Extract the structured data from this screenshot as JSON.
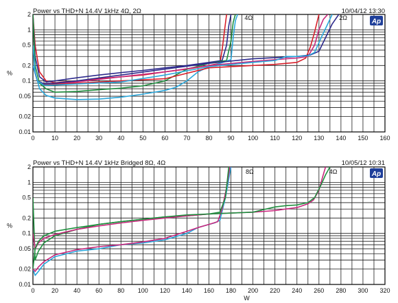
{
  "chart_data": [
    {
      "type": "line",
      "title": "Power vs THD+N 14.4V 1kHz 4Ω, 2Ω",
      "date": "10/04/12 13:30",
      "logo": "Ap",
      "xlabel": "",
      "ylabel": "%",
      "xlim": [
        0,
        160
      ],
      "ylim": [
        0.01,
        2
      ],
      "y_scale": "log",
      "grid": true,
      "x_ticks": [
        0,
        10,
        20,
        30,
        40,
        50,
        60,
        70,
        80,
        90,
        100,
        110,
        120,
        130,
        140,
        150,
        160
      ],
      "y_ticks": [
        {
          "v": 2,
          "label": "2"
        },
        {
          "v": 1,
          "label": "1"
        },
        {
          "v": 0.5,
          "label": "0.5"
        },
        {
          "v": 0.2,
          "label": "0.2"
        },
        {
          "v": 0.1,
          "label": "0.1"
        },
        {
          "v": 0.05,
          "label": "0.05"
        },
        {
          "v": 0.02,
          "label": "0.02"
        },
        {
          "v": 0.01,
          "label": "0.01"
        }
      ],
      "annotations": [
        {
          "text": "4Ω",
          "x": 98,
          "y": 1.7
        },
        {
          "text": "2Ω",
          "x": 141,
          "y": 1.7
        }
      ],
      "series": [
        {
          "color": "#d81f2a",
          "x": [
            0,
            1,
            3,
            6,
            10,
            20,
            30,
            40,
            50,
            60,
            70,
            80,
            85,
            86,
            87,
            88
          ],
          "y": [
            2,
            0.5,
            0.15,
            0.1,
            0.092,
            0.1,
            0.11,
            0.12,
            0.13,
            0.15,
            0.17,
            0.2,
            0.22,
            0.4,
            0.9,
            2
          ]
        },
        {
          "color": "#2d2a8c",
          "x": [
            0,
            1,
            3,
            6,
            10,
            20,
            30,
            40,
            50,
            60,
            70,
            80,
            86,
            88,
            89,
            90
          ],
          "y": [
            2,
            0.3,
            0.12,
            0.095,
            0.1,
            0.115,
            0.13,
            0.145,
            0.16,
            0.18,
            0.2,
            0.23,
            0.25,
            0.5,
            1.2,
            2
          ]
        },
        {
          "color": "#1f8f3f",
          "x": [
            0,
            1,
            3,
            6,
            10,
            20,
            30,
            40,
            50,
            60,
            70,
            80,
            88,
            90,
            91,
            92
          ],
          "y": [
            2,
            0.2,
            0.09,
            0.07,
            0.06,
            0.062,
            0.067,
            0.072,
            0.08,
            0.1,
            0.17,
            0.22,
            0.25,
            0.6,
            1.4,
            2
          ]
        },
        {
          "color": "#2aa7dc",
          "x": [
            0,
            1,
            3,
            6,
            10,
            20,
            30,
            40,
            50,
            60,
            65,
            70,
            75,
            80,
            85,
            90,
            91,
            92,
            93
          ],
          "y": [
            0.5,
            0.15,
            0.07,
            0.052,
            0.046,
            0.043,
            0.044,
            0.048,
            0.055,
            0.065,
            0.075,
            0.1,
            0.15,
            0.19,
            0.22,
            0.26,
            0.7,
            1.5,
            2
          ]
        },
        {
          "color": "#c8287d",
          "x": [
            0,
            2,
            5,
            10,
            20,
            40,
            60,
            80,
            100,
            110,
            115,
            120,
            125,
            128,
            130,
            132,
            134
          ],
          "y": [
            0.2,
            0.1,
            0.085,
            0.087,
            0.095,
            0.12,
            0.15,
            0.2,
            0.24,
            0.26,
            0.27,
            0.28,
            0.3,
            0.5,
            1,
            1.6,
            2
          ]
        },
        {
          "color": "#d81f2a",
          "x": [
            0,
            2,
            5,
            10,
            20,
            40,
            60,
            80,
            100,
            110,
            120,
            124,
            126,
            128,
            130
          ],
          "y": [
            0.2,
            0.1,
            0.085,
            0.086,
            0.09,
            0.1,
            0.11,
            0.18,
            0.2,
            0.21,
            0.23,
            0.28,
            0.45,
            0.9,
            2
          ]
        },
        {
          "color": "#2d2a8c",
          "x": [
            0,
            2,
            5,
            10,
            20,
            40,
            60,
            80,
            100,
            120,
            126,
            130,
            133,
            136,
            139
          ],
          "y": [
            0.2,
            0.1,
            0.088,
            0.09,
            0.1,
            0.13,
            0.17,
            0.22,
            0.27,
            0.3,
            0.32,
            0.38,
            0.7,
            1.3,
            2
          ]
        },
        {
          "color": "#2aa7dc",
          "x": [
            0,
            2,
            5,
            10,
            20,
            40,
            60,
            80,
            100,
            110,
            115,
            120,
            125,
            128,
            131,
            134,
            136
          ],
          "y": [
            0.2,
            0.1,
            0.082,
            0.083,
            0.087,
            0.095,
            0.13,
            0.19,
            0.23,
            0.25,
            0.3,
            0.3,
            0.31,
            0.36,
            0.7,
            1.3,
            2
          ]
        }
      ]
    },
    {
      "type": "line",
      "title": "Power vs THD+N 14.4V 1kHz Bridged 8Ω, 4Ω",
      "date": "10/05/12 10:31",
      "logo": "Ap",
      "xlabel": "W",
      "ylabel": "%",
      "xlim": [
        0,
        320
      ],
      "ylim": [
        0.01,
        2
      ],
      "y_scale": "log",
      "grid": true,
      "x_ticks": [
        0,
        20,
        40,
        60,
        80,
        100,
        120,
        140,
        160,
        180,
        200,
        220,
        240,
        260,
        280,
        300,
        320
      ],
      "y_ticks": [
        {
          "v": 2,
          "label": "2"
        },
        {
          "v": 1,
          "label": "1"
        },
        {
          "v": 0.5,
          "label": "0.5"
        },
        {
          "v": 0.2,
          "label": "0.2"
        },
        {
          "v": 0.1,
          "label": "0.1"
        },
        {
          "v": 0.05,
          "label": "0.05"
        },
        {
          "v": 0.02,
          "label": "0.02"
        },
        {
          "v": 0.01,
          "label": "0.01"
        }
      ],
      "annotations": [
        {
          "text": "8Ω",
          "x": 197,
          "y": 1.6
        },
        {
          "text": "4Ω",
          "x": 273,
          "y": 1.6
        }
      ],
      "series": [
        {
          "color": "#2aa7dc",
          "x": [
            0,
            2,
            5,
            10,
            20,
            40,
            60,
            80,
            100,
            120,
            140,
            150,
            160,
            165,
            170,
            175,
            180
          ],
          "y": [
            0.02,
            0.015,
            0.018,
            0.025,
            0.035,
            0.045,
            0.05,
            0.06,
            0.065,
            0.075,
            0.1,
            0.13,
            0.15,
            0.16,
            0.18,
            0.5,
            2
          ]
        },
        {
          "color": "#c8287d",
          "x": [
            0,
            2,
            5,
            10,
            20,
            40,
            60,
            80,
            100,
            120,
            140,
            150,
            160,
            168,
            172,
            176,
            179
          ],
          "y": [
            0.02,
            0.018,
            0.022,
            0.028,
            0.038,
            0.048,
            0.055,
            0.06,
            0.068,
            0.08,
            0.11,
            0.13,
            0.15,
            0.17,
            0.3,
            0.8,
            2
          ]
        },
        {
          "color": "#1f8f3f",
          "x": [
            0,
            2,
            5,
            10,
            20,
            40,
            60,
            80,
            100,
            120,
            140,
            160,
            170,
            175,
            178
          ],
          "y": [
            0.5,
            0.03,
            0.045,
            0.065,
            0.09,
            0.12,
            0.15,
            0.17,
            0.19,
            0.21,
            0.22,
            0.24,
            0.26,
            0.5,
            2
          ]
        },
        {
          "color": "#c8287d",
          "x": [
            0,
            2,
            5,
            10,
            20,
            40,
            60,
            80,
            100,
            120,
            140,
            160,
            180,
            200,
            220,
            230,
            240,
            250,
            255,
            260,
            263,
            266
          ],
          "y": [
            0.1,
            0.05,
            0.065,
            0.08,
            0.095,
            0.12,
            0.14,
            0.16,
            0.18,
            0.2,
            0.22,
            0.24,
            0.25,
            0.26,
            0.28,
            0.3,
            0.32,
            0.38,
            0.45,
            0.7,
            1.2,
            2
          ]
        },
        {
          "color": "#1f8f3f",
          "x": [
            0,
            2,
            5,
            10,
            20,
            40,
            60,
            80,
            100,
            120,
            140,
            160,
            180,
            200,
            220,
            230,
            240,
            250,
            256,
            262,
            266,
            270
          ],
          "y": [
            0.02,
            0.05,
            0.07,
            0.09,
            0.11,
            0.13,
            0.15,
            0.17,
            0.19,
            0.21,
            0.23,
            0.24,
            0.25,
            0.26,
            0.33,
            0.35,
            0.36,
            0.4,
            0.5,
            0.9,
            1.4,
            2
          ]
        }
      ]
    }
  ]
}
